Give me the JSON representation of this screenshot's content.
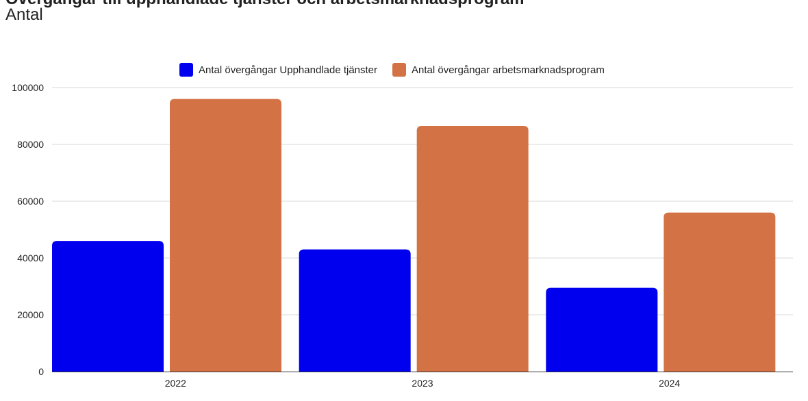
{
  "chart_data": {
    "type": "bar",
    "title": "Övergångar till upphandlade tjänster och arbetsmarknadsprogram",
    "xlabel": "",
    "ylabel": "Antal",
    "categories": [
      "2022",
      "2023",
      "2024"
    ],
    "series": [
      {
        "name": "Antal övergångar Upphandlade tjänster",
        "values": [
          46000,
          43000,
          29500
        ],
        "color": "#0000ee"
      },
      {
        "name": "Antal övergångar arbetsmarknadsprogram",
        "values": [
          96000,
          86500,
          56000
        ],
        "color": "#d37244"
      }
    ],
    "ylim": [
      0,
      100000
    ],
    "yticks": [
      0,
      20000,
      40000,
      60000,
      80000,
      100000
    ],
    "grid": true,
    "legend_position": "top-center"
  }
}
